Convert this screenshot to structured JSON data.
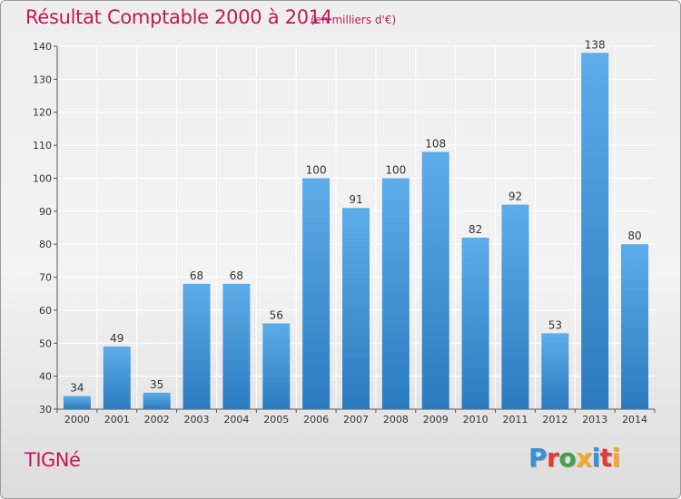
{
  "header": {
    "title": "Résultat Comptable 2000 à 2014",
    "subtitle": "(en milliers d'€)"
  },
  "footer": {
    "commune": "TIGNé",
    "logo_letters": [
      "P",
      "r",
      "o",
      "x",
      "i",
      "t",
      "i"
    ],
    "logo_colors": [
      "#3a8fd6",
      "#e53935",
      "#43a047",
      "#f9a825",
      "#3a8fd6",
      "#e53935",
      "#f9a825"
    ]
  },
  "chart_data": {
    "type": "bar",
    "title": "Résultat Comptable 2000 à 2014",
    "subtitle": "(en milliers d'€)",
    "categories": [
      "2000",
      "2001",
      "2002",
      "2003",
      "2004",
      "2005",
      "2006",
      "2007",
      "2008",
      "2009",
      "2010",
      "2011",
      "2012",
      "2013",
      "2014"
    ],
    "values": [
      34,
      49,
      35,
      68,
      68,
      56,
      100,
      91,
      100,
      108,
      82,
      92,
      53,
      138,
      80
    ],
    "ylim": [
      30,
      140
    ],
    "yticks": [
      30,
      40,
      50,
      60,
      70,
      80,
      90,
      100,
      110,
      120,
      130,
      140
    ],
    "xlabel": "",
    "ylabel": "",
    "grid": true,
    "legend": "none",
    "bar_color_top": "#5dadea",
    "bar_color_bottom": "#2a7bbf",
    "grid_color": "#ffffff"
  }
}
